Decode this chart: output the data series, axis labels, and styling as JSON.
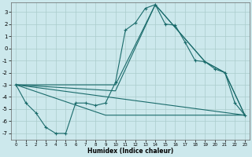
{
  "title": "",
  "xlabel": "Humidex (Indice chaleur)",
  "ylabel": "",
  "background_color": "#cce8ec",
  "grid_color": "#aacccc",
  "line_color": "#1a6b6b",
  "xlim": [
    -0.5,
    23.5
  ],
  "ylim": [
    -7.5,
    3.8
  ],
  "xticks": [
    0,
    1,
    2,
    3,
    4,
    5,
    6,
    7,
    8,
    9,
    10,
    11,
    12,
    13,
    14,
    15,
    16,
    17,
    18,
    19,
    20,
    21,
    22,
    23
  ],
  "yticks": [
    3,
    2,
    1,
    0,
    -1,
    -2,
    -3,
    -4,
    -5,
    -6,
    -7
  ],
  "main_line": {
    "x": [
      0,
      1,
      2,
      3,
      4,
      5,
      6,
      7,
      8,
      9,
      10,
      11,
      12,
      13,
      14,
      15,
      16,
      17,
      18,
      19,
      20,
      21,
      22,
      23
    ],
    "y": [
      -3,
      -4.5,
      -5.3,
      -6.5,
      -7.0,
      -7.0,
      -4.5,
      -4.5,
      -4.7,
      -4.5,
      -2.8,
      1.5,
      2.1,
      3.3,
      3.6,
      2.0,
      1.9,
      0.5,
      -1.0,
      -1.1,
      -1.7,
      -2.0,
      -4.5,
      -5.5
    ]
  },
  "extra_lines": [
    {
      "x": [
        0,
        10,
        14,
        19,
        21,
        23
      ],
      "y": [
        -3,
        -3.0,
        3.6,
        -1.1,
        -2.0,
        -5.5
      ]
    },
    {
      "x": [
        0,
        10,
        14,
        19,
        21,
        23
      ],
      "y": [
        -3,
        -3.5,
        3.6,
        -1.1,
        -2.0,
        -5.5
      ]
    },
    {
      "x": [
        0,
        23
      ],
      "y": [
        -3,
        -5.5
      ]
    },
    {
      "x": [
        0,
        9,
        23
      ],
      "y": [
        -3,
        -5.5,
        -5.5
      ]
    }
  ]
}
